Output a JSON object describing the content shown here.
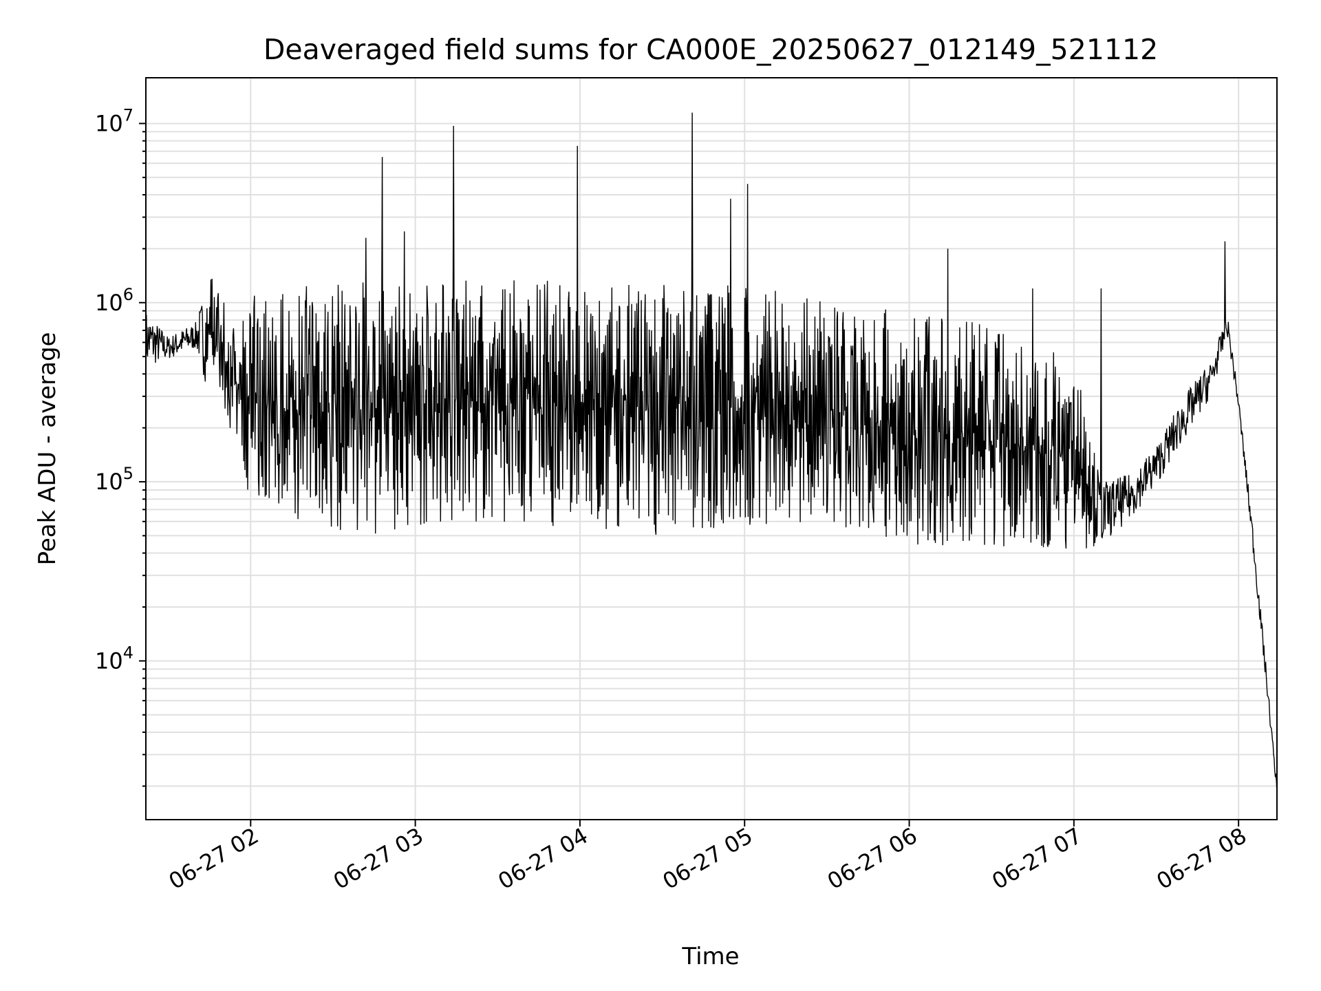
{
  "chart_data": {
    "type": "line",
    "title": "Deaveraged field sums for CA000E_20250627_012149_521112",
    "xlabel": "Time",
    "ylabel": "Peak ADU - average",
    "yscale": "log",
    "ylim": [
      1300,
      18000000
    ],
    "xlim": [
      "06-27 01:21:49",
      "06-27 08:14"
    ],
    "grid": "major and minor, both axes",
    "x_ticks": [
      {
        "time": "02:00",
        "label": "06-27 02"
      },
      {
        "time": "03:00",
        "label": "06-27 03"
      },
      {
        "time": "04:00",
        "label": "06-27 04"
      },
      {
        "time": "05:00",
        "label": "06-27 05"
      },
      {
        "time": "06:00",
        "label": "06-27 06"
      },
      {
        "time": "07:00",
        "label": "06-27 07"
      },
      {
        "time": "08:00",
        "label": "06-27 08"
      }
    ],
    "y_ticks": [
      {
        "value": 10000,
        "base": "10",
        "exp": "4"
      },
      {
        "value": 100000,
        "base": "10",
        "exp": "5"
      },
      {
        "value": 1000000,
        "base": "10",
        "exp": "6"
      },
      {
        "value": 10000000,
        "base": "10",
        "exp": "7"
      }
    ],
    "series": [
      {
        "color": "#000000",
        "envelope": [
          {
            "time": "01:21",
            "high": 950000,
            "low": 420000
          },
          {
            "time": "01:30",
            "high": 650000,
            "low": 480000
          },
          {
            "time": "01:40",
            "high": 780000,
            "low": 550000
          },
          {
            "time": "01:45",
            "high": 1500000,
            "low": 300000
          },
          {
            "time": "01:55",
            "high": 700000,
            "low": 170000
          },
          {
            "time": "02:00",
            "high": 1100000,
            "low": 75000
          },
          {
            "time": "02:20",
            "high": 1300000,
            "low": 55000
          },
          {
            "time": "02:40",
            "high": 1300000,
            "low": 50000
          },
          {
            "time": "03:00",
            "high": 1300000,
            "low": 55000
          },
          {
            "time": "03:30",
            "high": 1400000,
            "low": 60000
          },
          {
            "time": "04:00",
            "high": 1300000,
            "low": 55000
          },
          {
            "time": "04:30",
            "high": 1300000,
            "low": 50000
          },
          {
            "time": "05:00",
            "high": 1300000,
            "low": 55000
          },
          {
            "time": "05:30",
            "high": 1000000,
            "low": 50000
          },
          {
            "time": "06:00",
            "high": 900000,
            "low": 45000
          },
          {
            "time": "06:30",
            "high": 750000,
            "low": 42000
          },
          {
            "time": "07:00",
            "high": 500000,
            "low": 40000
          },
          {
            "time": "07:10",
            "high": 100000,
            "low": 45000
          },
          {
            "time": "07:20",
            "high": 110000,
            "low": 60000
          },
          {
            "time": "07:30",
            "high": 160000,
            "low": 95000
          },
          {
            "time": "07:40",
            "high": 300000,
            "low": 170000
          },
          {
            "time": "07:50",
            "high": 480000,
            "low": 300000
          },
          {
            "time": "07:56",
            "high": 850000,
            "low": 650000
          },
          {
            "time": "08:00",
            "high": 300000,
            "low": 250000
          },
          {
            "time": "08:05",
            "high": 60000,
            "low": 45000
          },
          {
            "time": "08:10",
            "high": 9500,
            "low": 7500
          },
          {
            "time": "08:14",
            "high": 2000,
            "low": 1800
          }
        ],
        "spikes": [
          {
            "time": "02:48",
            "value": 6500000
          },
          {
            "time": "02:42",
            "value": 2300000
          },
          {
            "time": "02:56",
            "value": 2500000
          },
          {
            "time": "03:14",
            "value": 9700000
          },
          {
            "time": "03:59",
            "value": 7500000
          },
          {
            "time": "04:41",
            "value": 11500000
          },
          {
            "time": "04:55",
            "value": 3800000
          },
          {
            "time": "05:01",
            "value": 4600000
          },
          {
            "time": "06:14",
            "value": 2000000
          },
          {
            "time": "06:45",
            "value": 1200000
          },
          {
            "time": "07:10",
            "value": 1200000
          },
          {
            "time": "07:55",
            "value": 2200000
          }
        ]
      }
    ]
  }
}
